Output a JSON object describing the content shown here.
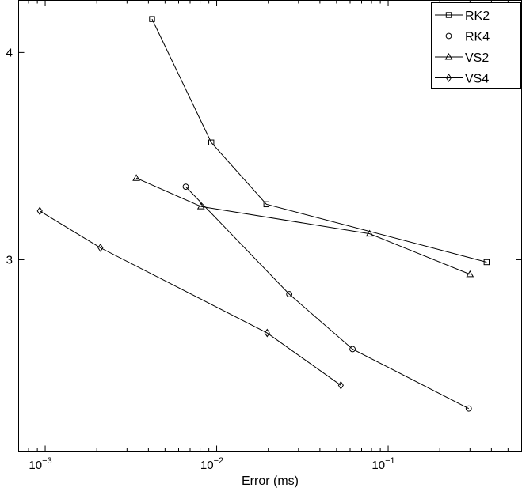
{
  "chart_data": {
    "type": "line",
    "title": "",
    "xlabel": "Error (ms)",
    "ylabel": "",
    "x_scale": "log",
    "y_scale": "log",
    "xlim": [
      0.0007,
      0.6
    ],
    "ylim": [
      2.3,
      4.3
    ],
    "grid": false,
    "legend_position": "top-right",
    "x_ticks": [
      {
        "value": 0.001,
        "base": "10",
        "exp": "−3"
      },
      {
        "value": 0.01,
        "base": "10",
        "exp": "−2"
      },
      {
        "value": 0.1,
        "base": "10",
        "exp": "−1"
      }
    ],
    "y_ticks": [
      {
        "value": 3,
        "label": "3"
      },
      {
        "value": 4,
        "label": "4"
      }
    ],
    "series": [
      {
        "name": "RK2",
        "marker": "square",
        "x": [
          0.0042,
          0.0093,
          0.0195,
          0.375
        ],
        "y": [
          4.19,
          3.53,
          3.24,
          2.99
        ]
      },
      {
        "name": "RK4",
        "marker": "circle",
        "x": [
          0.0066,
          0.0265,
          0.062,
          0.295
        ],
        "y": [
          3.32,
          2.86,
          2.65,
          2.44
        ]
      },
      {
        "name": "VS2",
        "marker": "triangle",
        "x": [
          0.0034,
          0.0081,
          0.078,
          0.3
        ],
        "y": [
          3.36,
          3.23,
          3.11,
          2.94
        ]
      },
      {
        "name": "VS4",
        "marker": "diamond",
        "x": [
          0.00093,
          0.0021,
          0.0197,
          0.053
        ],
        "y": [
          3.21,
          3.05,
          2.71,
          2.52
        ]
      }
    ]
  }
}
